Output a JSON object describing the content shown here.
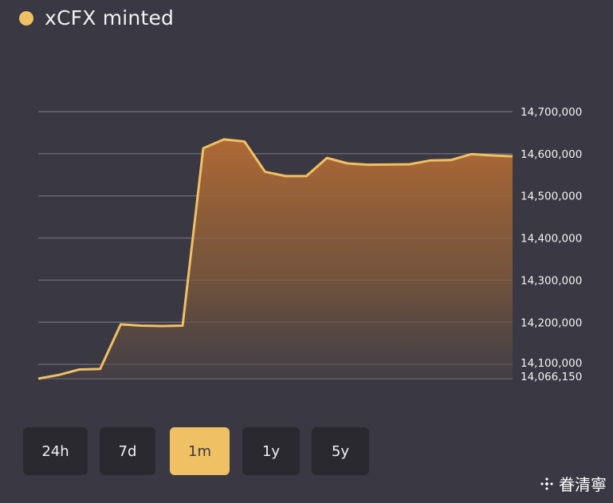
{
  "legend": {
    "label": "xCFX minted",
    "color": "#f0c064"
  },
  "time_ranges": {
    "options": [
      "24h",
      "7d",
      "1m",
      "1y",
      "5y"
    ],
    "selected": "1m"
  },
  "watermark": {
    "text": "眷清寧",
    "icon": "diamond-logo-icon"
  },
  "colors": {
    "background": "#3a3842",
    "line": "#f0c064",
    "button_bg": "#2b2930",
    "fill_top": "#b56c34",
    "grid": "#6b6973"
  },
  "chart_data": {
    "type": "area",
    "title": "",
    "series": [
      {
        "name": "xCFX minted",
        "values": [
          14066150,
          14075000,
          14088000,
          14089000,
          14195000,
          14192000,
          14191000,
          14192000,
          14613000,
          14634000,
          14629000,
          14557000,
          14547000,
          14547000,
          14590000,
          14577000,
          14574000,
          14574500,
          14575000,
          14584000,
          14585000,
          14599000,
          14596000,
          14594000
        ]
      }
    ],
    "ylim": [
      14066150,
      14700000
    ],
    "y_ticks": [
      "14,066,150",
      "14,100,000",
      "14,200,000",
      "14,300,000",
      "14,400,000",
      "14,500,000",
      "14,600,000",
      "14,700,000"
    ],
    "y_tick_values": [
      14066150,
      14100000,
      14200000,
      14300000,
      14400000,
      14500000,
      14600000,
      14700000
    ],
    "grid": true,
    "y_axis_position": "right"
  }
}
